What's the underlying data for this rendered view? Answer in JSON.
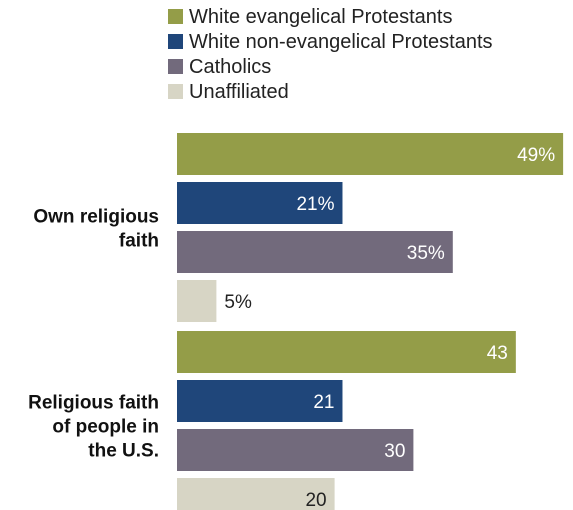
{
  "chart_data": {
    "type": "bar",
    "orientation": "horizontal",
    "categories": [
      [
        "Own religious",
        "faith"
      ],
      [
        "Religious faith",
        "of people in",
        "the U.S."
      ]
    ],
    "series": [
      {
        "name": "White evangelical Protestants",
        "color": "#949d48",
        "values": [
          49,
          43
        ],
        "labels": [
          "49%",
          "43"
        ]
      },
      {
        "name": "White non-evangelical Protestants",
        "color": "#1f467a",
        "values": [
          21,
          21
        ],
        "labels": [
          "21%",
          "21"
        ]
      },
      {
        "name": "Catholics",
        "color": "#726a7c",
        "values": [
          35,
          30
        ],
        "labels": [
          "35%",
          "30"
        ]
      },
      {
        "name": "Unaffiliated",
        "color": "#d7d5c5",
        "values": [
          5,
          20
        ],
        "labels": [
          "5%",
          "20"
        ]
      }
    ],
    "xlim": [
      0,
      50
    ],
    "grid": false,
    "legend_position": "top"
  }
}
